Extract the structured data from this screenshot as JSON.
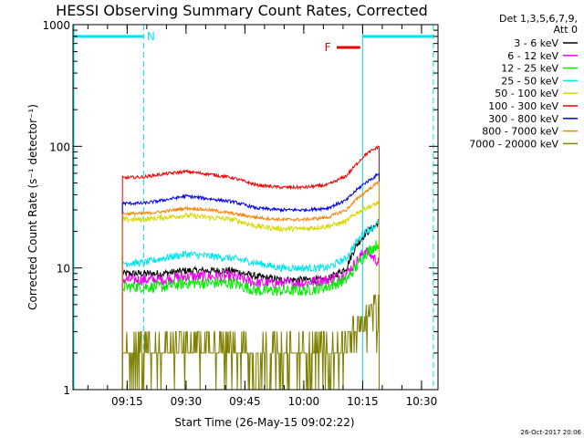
{
  "chart_data": {
    "type": "line",
    "title": "HESSI Observing Summary Count Rates, Corrected",
    "xlabel": "Start Time (26-May-15 09:02:22)",
    "ylabel": "Corrected Count Rate (s⁻¹ detector⁻¹)",
    "y_scale": "log",
    "ylim": [
      1,
      1000
    ],
    "y_ticks": [
      {
        "value": 1,
        "label": "1"
      },
      {
        "value": 10,
        "label": "10"
      },
      {
        "value": 100,
        "label": "100"
      },
      {
        "value": 1000,
        "label": "1000"
      }
    ],
    "x_domain_min": [
      9.02,
      10.57
    ],
    "x_ticks": [
      {
        "value": 9.25,
        "label": "09:15"
      },
      {
        "value": 9.5,
        "label": "09:30"
      },
      {
        "value": 9.75,
        "label": "09:45"
      },
      {
        "value": 10.0,
        "label": "10:00"
      },
      {
        "value": 10.25,
        "label": "10:15"
      },
      {
        "value": 10.5,
        "label": "10:30"
      }
    ],
    "legend_header": [
      "Det 1,3,5,6,7,9,",
      "Att 0"
    ],
    "legend_position": "right",
    "timestamp": "26-Oct-2017 20:06",
    "flags": [
      {
        "label": "N",
        "color": "#00e5ee",
        "start": 9.02,
        "end": 9.32,
        "level": 800
      },
      {
        "label": "",
        "color": "#00e5ee",
        "start": 10.25,
        "end": 10.55,
        "level": 800
      },
      {
        "label": "F",
        "color": "#ee0000",
        "start": 10.14,
        "end": 10.24,
        "level": 650
      }
    ],
    "vertical_lines": [
      {
        "time": 9.32,
        "style": "dashed",
        "color": "#00e5ee"
      },
      {
        "time": 10.25,
        "style": "solid",
        "color": "#00e5ee"
      },
      {
        "time": 10.55,
        "style": "dashed",
        "color": "#00e5ee"
      }
    ],
    "data_start": 9.23,
    "data_end": 10.32,
    "x": [
      9.23,
      9.32,
      9.4,
      9.5,
      9.6,
      9.7,
      9.8,
      9.9,
      10.0,
      10.1,
      10.18,
      10.22,
      10.26,
      10.3,
      10.32
    ],
    "series": [
      {
        "name": "3 - 6 keV",
        "color": "#000000",
        "values": [
          9,
          9,
          9,
          9.5,
          9.5,
          9.5,
          8.5,
          8,
          8,
          8,
          10,
          15,
          19,
          22,
          24
        ]
      },
      {
        "name": "6 - 12 keV",
        "color": "#ee00ee",
        "values": [
          8,
          8,
          8,
          8.5,
          8.5,
          8.5,
          7.5,
          7.5,
          7.5,
          8,
          9,
          11,
          14,
          12,
          11
        ]
      },
      {
        "name": "12 - 25 keV",
        "color": "#00ee00",
        "values": [
          7,
          7,
          7,
          7.5,
          7.5,
          7.5,
          6.5,
          6.5,
          6.5,
          7,
          8,
          10,
          13,
          15,
          16
        ]
      },
      {
        "name": "25 - 50 keV",
        "color": "#00e5ee",
        "values": [
          11,
          11,
          12,
          13,
          12.5,
          12,
          11,
          10,
          10,
          10,
          12,
          16,
          20,
          22,
          24
        ]
      },
      {
        "name": "50 - 100 keV",
        "color": "#d8d800",
        "values": [
          25,
          25,
          26,
          27,
          26,
          25,
          22,
          21,
          21,
          22,
          24,
          28,
          31,
          33,
          35
        ]
      },
      {
        "name": "100 - 300 keV",
        "color": "#ee0000",
        "values": [
          55,
          56,
          59,
          62,
          59,
          55,
          48,
          46,
          46,
          48,
          57,
          70,
          85,
          95,
          100
        ]
      },
      {
        "name": "300 - 800 keV",
        "color": "#0000ee",
        "values": [
          34,
          34,
          36,
          39,
          37,
          35,
          31,
          30,
          30,
          31,
          36,
          43,
          50,
          56,
          60
        ]
      },
      {
        "name": "800 - 7000 keV",
        "color": "#ff7f00",
        "values": [
          28,
          28,
          29,
          31,
          30,
          28,
          26,
          25,
          25,
          26,
          30,
          36,
          42,
          48,
          52
        ]
      },
      {
        "name": "7000 - 20000 keV",
        "color": "#7f7f00",
        "values": [
          2,
          2,
          2.2,
          2.4,
          2.3,
          2.2,
          2,
          2,
          2,
          2,
          2.4,
          3.2,
          4,
          5,
          6
        ]
      }
    ]
  }
}
